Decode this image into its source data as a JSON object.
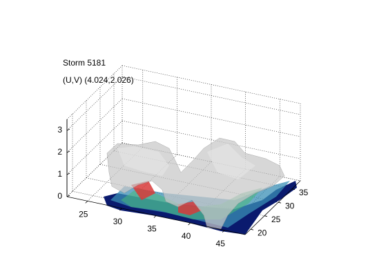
{
  "chart_data": {
    "type": "isosurface",
    "title": "Storm 5181",
    "subtitle": "(U,V) (4.024,2.026)",
    "xlim": [
      22,
      48
    ],
    "ylim": [
      18,
      38
    ],
    "zlim": [
      0,
      3.5
    ],
    "xticks": [
      25,
      30,
      35,
      40,
      45
    ],
    "yticks": [
      20,
      25,
      30,
      35
    ],
    "zticks": [
      0,
      1,
      2,
      3
    ],
    "grid": true
  }
}
